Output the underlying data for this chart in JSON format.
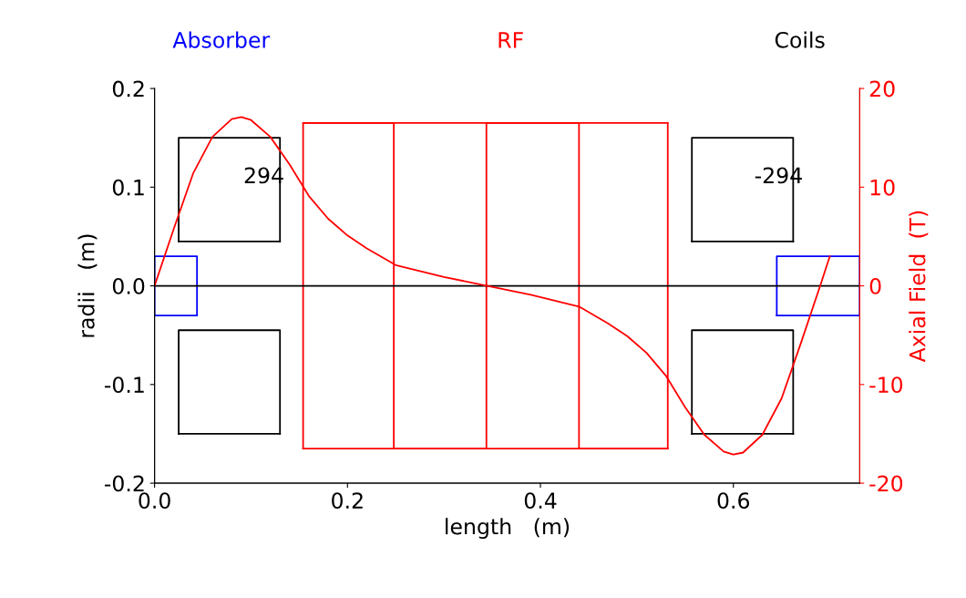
{
  "chart_data": {
    "type": "line",
    "xlabel": "length   (m)",
    "ylabel": "radii   (m)",
    "y2label": "Axial Field  (T)",
    "xlim": [
      0,
      0.731
    ],
    "xticks": [
      {
        "value": 0,
        "label": "0.0"
      },
      {
        "value": 0.2,
        "label": "0.2"
      },
      {
        "value": 0.4,
        "label": "0.4"
      },
      {
        "value": 0.6,
        "label": "0.6"
      }
    ],
    "ylim": [
      -0.2,
      0.2
    ],
    "yticks": [
      {
        "value": -0.2,
        "label": "-0.2"
      },
      {
        "value": -0.1,
        "label": "-0.1"
      },
      {
        "value": 0,
        "label": "0.0"
      },
      {
        "value": 0.1,
        "label": "0.1"
      },
      {
        "value": 0.2,
        "label": "0.2"
      }
    ],
    "y2lim": [
      -20,
      20
    ],
    "y2ticks": [
      -20,
      -10,
      0,
      10,
      20
    ],
    "grid": false,
    "legend": "top",
    "marker": "none",
    "line_style": "solid",
    "ref_lines": [
      {
        "axis": "y",
        "value": 0,
        "color": "#000000"
      }
    ],
    "annotations": [
      "294",
      "-294"
    ],
    "series": [
      {
        "name": "Absorber",
        "color": "#0000ff",
        "x": [
          0,
          0,
          0.044,
          0.044
        ],
        "values": [
          -0.03,
          0.03,
          0.03,
          -0.03
        ]
      },
      {
        "color": "#0000ff",
        "x": [
          0,
          0.044
        ],
        "values": [
          -0.03,
          -0.03
        ]
      },
      {
        "color": "#0000ff",
        "x": [
          0.645,
          0.645,
          0.731,
          0.731
        ],
        "values": [
          -0.03,
          0.03,
          0.03,
          -0.03
        ]
      },
      {
        "color": "#0000ff",
        "x": [
          0.645,
          0.731
        ],
        "values": [
          -0.03,
          -0.03
        ]
      },
      {
        "name": "RF",
        "color": "#ff0000",
        "x": [
          0.154,
          0.154,
          0.248,
          0.248,
          0.344,
          0.344,
          0.44,
          0.44,
          0.532,
          0.532
        ],
        "values": [
          -0.165,
          0.165,
          0.165,
          -0.165,
          -0.165,
          0.165,
          0.165,
          -0.165,
          -0.165,
          0.165
        ]
      },
      {
        "color": "#ff0000",
        "x": [
          0.154,
          0.532
        ],
        "values": [
          -0.165,
          -0.165
        ]
      },
      {
        "color": "#ff0000",
        "x": [
          0.154,
          0.532
        ],
        "values": [
          0.165,
          0.165
        ]
      },
      {
        "name": "Coils",
        "color": "#000000",
        "x": [
          0.025,
          0.025,
          0.13,
          0.13
        ],
        "values": [
          0.045,
          0.15,
          0.15,
          0.045
        ]
      },
      {
        "color": "#000000",
        "x": [
          0.025,
          0.13
        ],
        "values": [
          0.045,
          0.045
        ]
      },
      {
        "color": "#000000",
        "x": [
          0.025,
          0.025,
          0.13,
          0.13
        ],
        "values": [
          -0.15,
          -0.045,
          -0.045,
          -0.15
        ]
      },
      {
        "color": "#000000",
        "x": [
          0.025,
          0.13
        ],
        "values": [
          -0.15,
          -0.15
        ]
      },
      {
        "color": "#000000",
        "x": [
          0.557,
          0.557,
          0.662,
          0.662
        ],
        "values": [
          0.045,
          0.15,
          0.15,
          0.045
        ]
      },
      {
        "color": "#000000",
        "x": [
          0.557,
          0.662
        ],
        "values": [
          0.045,
          0.045
        ]
      },
      {
        "color": "#000000",
        "x": [
          0.557,
          0.557,
          0.662,
          0.662
        ],
        "values": [
          -0.15,
          -0.045,
          -0.045,
          -0.15
        ]
      },
      {
        "color": "#000000",
        "x": [
          0.557,
          0.662
        ],
        "values": [
          -0.15,
          -0.15
        ]
      },
      {
        "color": "#ff0000",
        "axis": "y2",
        "x": [
          0,
          0.02,
          0.04,
          0.06,
          0.08,
          0.09,
          0.1,
          0.12,
          0.14,
          0.16,
          0.18,
          0.2,
          0.22,
          0.25,
          0.3,
          0.345,
          0.39,
          0.44,
          0.47,
          0.49,
          0.51,
          0.53,
          0.55,
          0.57,
          0.59,
          0.6,
          0.61,
          0.63,
          0.65,
          0.67,
          0.69,
          0.7
        ],
        "values": [
          0,
          5.8,
          11.4,
          15.1,
          16.9,
          17.1,
          16.8,
          15.1,
          12.3,
          9.1,
          6.8,
          5.1,
          3.8,
          2.1,
          0.9,
          0,
          -0.9,
          -2.1,
          -3.8,
          -5.1,
          -6.8,
          -9.1,
          -12.3,
          -15.1,
          -16.8,
          -17.1,
          -16.9,
          -15.1,
          -11.4,
          -5.8,
          0,
          3
        ]
      }
    ]
  }
}
